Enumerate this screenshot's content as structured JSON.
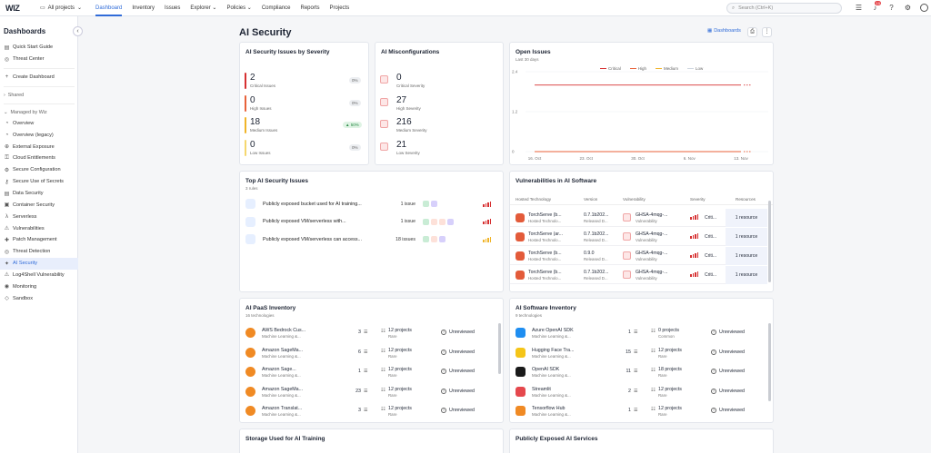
{
  "topbar": {
    "logo": "WIZ",
    "project_selector": "All projects",
    "nav": [
      "Dashboard",
      "Inventory",
      "Issues",
      "Explorer",
      "Policies",
      "Compliance",
      "Reports",
      "Projects"
    ],
    "search_placeholder": "Search (Ctrl+K)",
    "notification_count": "10"
  },
  "sidebar": {
    "title": "Dashboards",
    "top_items": [
      "Quick Start Guide",
      "Threat Center"
    ],
    "create": "Create Dashboard",
    "shared_group": "Shared",
    "managed_group": "Managed by Wiz",
    "items": [
      "Overview",
      "Overview (legacy)",
      "External Exposure",
      "Cloud Entitlements",
      "Secure Configuration",
      "Secure Use of Secrets",
      "Data Security",
      "Container Security",
      "Serverless",
      "Vulnerabilities",
      "Patch Management",
      "Threat Detection",
      "AI Security",
      "Log4Shell Vulnerability",
      "Monitoring",
      "Sandbox"
    ],
    "active_item": "AI Security"
  },
  "page": {
    "title": "AI Security",
    "dashboards_link": "Dashboards"
  },
  "severity_card": {
    "title": "AI Security Issues by Severity",
    "rows": [
      {
        "num": "2",
        "label": "Critical Issues",
        "pct": "0%",
        "color": "#d63031"
      },
      {
        "num": "0",
        "label": "High Issues",
        "pct": "0%",
        "color": "#e8623a"
      },
      {
        "num": "18",
        "label": "Medium Issues",
        "pct": "▲ 50%",
        "color": "#f0b429"
      },
      {
        "num": "0",
        "label": "Low Issues",
        "pct": "0%",
        "color": "#f5d76e"
      }
    ]
  },
  "misconfig_card": {
    "title": "AI Misconfigurations",
    "rows": [
      {
        "num": "0",
        "label": "Critical Severity"
      },
      {
        "num": "27",
        "label": "High Severity"
      },
      {
        "num": "216",
        "label": "Medium Severity"
      },
      {
        "num": "21",
        "label": "Low Severity"
      }
    ]
  },
  "open_issues": {
    "title": "Open Issues",
    "subtitle": "Last 30 days",
    "legend": [
      {
        "name": "Critical",
        "color": "#d63031"
      },
      {
        "name": "High",
        "color": "#e8623a"
      },
      {
        "name": "Medium",
        "color": "#f0b429"
      },
      {
        "name": "Low",
        "color": "#cfd6e0"
      }
    ]
  },
  "chart_data": {
    "type": "line",
    "title": "Open Issues",
    "x": [
      "16. Oct",
      "23. Oct",
      "30. Oct",
      "6. Nov",
      "13. Nov"
    ],
    "yticks": [
      "0",
      "1.2",
      "2.4"
    ],
    "ylim": [
      0,
      2.4
    ],
    "series": [
      {
        "name": "Critical",
        "values": [
          2,
          2,
          2,
          2,
          2
        ],
        "color": "#d63031"
      },
      {
        "name": "High",
        "values": [
          0,
          0,
          0,
          0,
          0
        ],
        "color": "#e8623a"
      },
      {
        "name": "Medium",
        "values": [
          0,
          0,
          0,
          0,
          0
        ],
        "color": "#f0b429"
      },
      {
        "name": "Low",
        "values": [
          0,
          0,
          0,
          0,
          0
        ],
        "color": "#cfd6e0"
      }
    ]
  },
  "top_issues": {
    "title": "Top AI Security Issues",
    "subtitle": "3 rules",
    "rows": [
      {
        "name": "Publicly exposed bucket used for AI training...",
        "count": "1 issue"
      },
      {
        "name": "Publicly exposed VM/serverless with...",
        "count": "1 issue"
      },
      {
        "name": "Publicly exposed VM/serverless can access...",
        "count": "18 issues"
      }
    ]
  },
  "vulns": {
    "title": "Vulnerabilities in AI Software",
    "headers": [
      "Hosted Technology",
      "Version",
      "Vulnerability",
      "Severity",
      "Resources"
    ],
    "rows": [
      {
        "tech": "TorchServe (b...",
        "tech_sub": "Hosted Technolo...",
        "ver": "0.7.1b202...",
        "ver_sub": "Released D...",
        "vuln": "GHSA-4mqg-...",
        "vuln_sub": "Vulnerability",
        "sev": "Criti...",
        "res": "1 resource"
      },
      {
        "tech": "TorchServe (ar...",
        "tech_sub": "Hosted Technolo...",
        "ver": "0.7.1b202...",
        "ver_sub": "Released D...",
        "vuln": "GHSA-4mqg-...",
        "vuln_sub": "Vulnerability",
        "sev": "Criti...",
        "res": "1 resource"
      },
      {
        "tech": "TorchServe (b...",
        "tech_sub": "Hosted Technolo...",
        "ver": "0.9.0",
        "ver_sub": "Released D...",
        "vuln": "GHSA-4mqg-...",
        "vuln_sub": "Vulnerability",
        "sev": "Criti...",
        "res": "1 resource"
      },
      {
        "tech": "TorchServe (b...",
        "tech_sub": "Hosted Technolo...",
        "ver": "0.7.1b202...",
        "ver_sub": "Released D...",
        "vuln": "GHSA-4mqg-...",
        "vuln_sub": "Vulnerability",
        "sev": "Criti...",
        "res": "1 resource"
      }
    ]
  },
  "paas": {
    "title": "AI PaaS Inventory",
    "subtitle": "16 technologies",
    "rows": [
      {
        "name": "AWS Bedrock Cus...",
        "sub": "Machine Learning &...",
        "count": "3",
        "proj": "12 projects",
        "proj_sub": "Rare",
        "status": "Unreviewed"
      },
      {
        "name": "Amazon SageMa...",
        "sub": "Machine Learning &...",
        "count": "6",
        "proj": "12 projects",
        "proj_sub": "Rare",
        "status": "Unreviewed"
      },
      {
        "name": "Amazon Sage...",
        "sub": "Machine Learning &...",
        "count": "1",
        "proj": "12 projects",
        "proj_sub": "Rare",
        "status": "Unreviewed"
      },
      {
        "name": "Amazon SageMa...",
        "sub": "Machine Learning &...",
        "count": "23",
        "proj": "12 projects",
        "proj_sub": "Rare",
        "status": "Unreviewed"
      },
      {
        "name": "Amazon Translat...",
        "sub": "Machine Learning &...",
        "count": "3",
        "proj": "12 projects",
        "proj_sub": "Rare",
        "status": "Unreviewed"
      }
    ]
  },
  "software": {
    "title": "AI Software Inventory",
    "subtitle": "9 technologies",
    "rows": [
      {
        "name": "Azure OpenAI SDK",
        "sub": "Machine Learning &...",
        "count": "1",
        "proj": "0 projects",
        "proj_sub": "Common",
        "status": "Unreviewed",
        "color": "#1f8ef1"
      },
      {
        "name": "Hugging Face Tra...",
        "sub": "Machine Learning &...",
        "count": "15",
        "proj": "12 projects",
        "proj_sub": "Rare",
        "status": "Unreviewed",
        "color": "#f5c518"
      },
      {
        "name": "OpenAI SDK",
        "sub": "Machine Learning &...",
        "count": "11",
        "proj": "18 projects",
        "proj_sub": "Rare",
        "status": "Unreviewed",
        "color": "#1a1a1a"
      },
      {
        "name": "Streamlit",
        "sub": "Machine Learning &...",
        "count": "2",
        "proj": "12 projects",
        "proj_sub": "Rare",
        "status": "Unreviewed",
        "color": "#e5484d"
      },
      {
        "name": "Tensorflow Hub",
        "sub": "Machine Learning &...",
        "count": "1",
        "proj": "12 projects",
        "proj_sub": "Rare",
        "status": "Unreviewed",
        "color": "#f08a24"
      }
    ]
  },
  "bottom": {
    "storage_title": "Storage Used for AI Training",
    "exposed_title": "Publicly Exposed AI Services"
  }
}
